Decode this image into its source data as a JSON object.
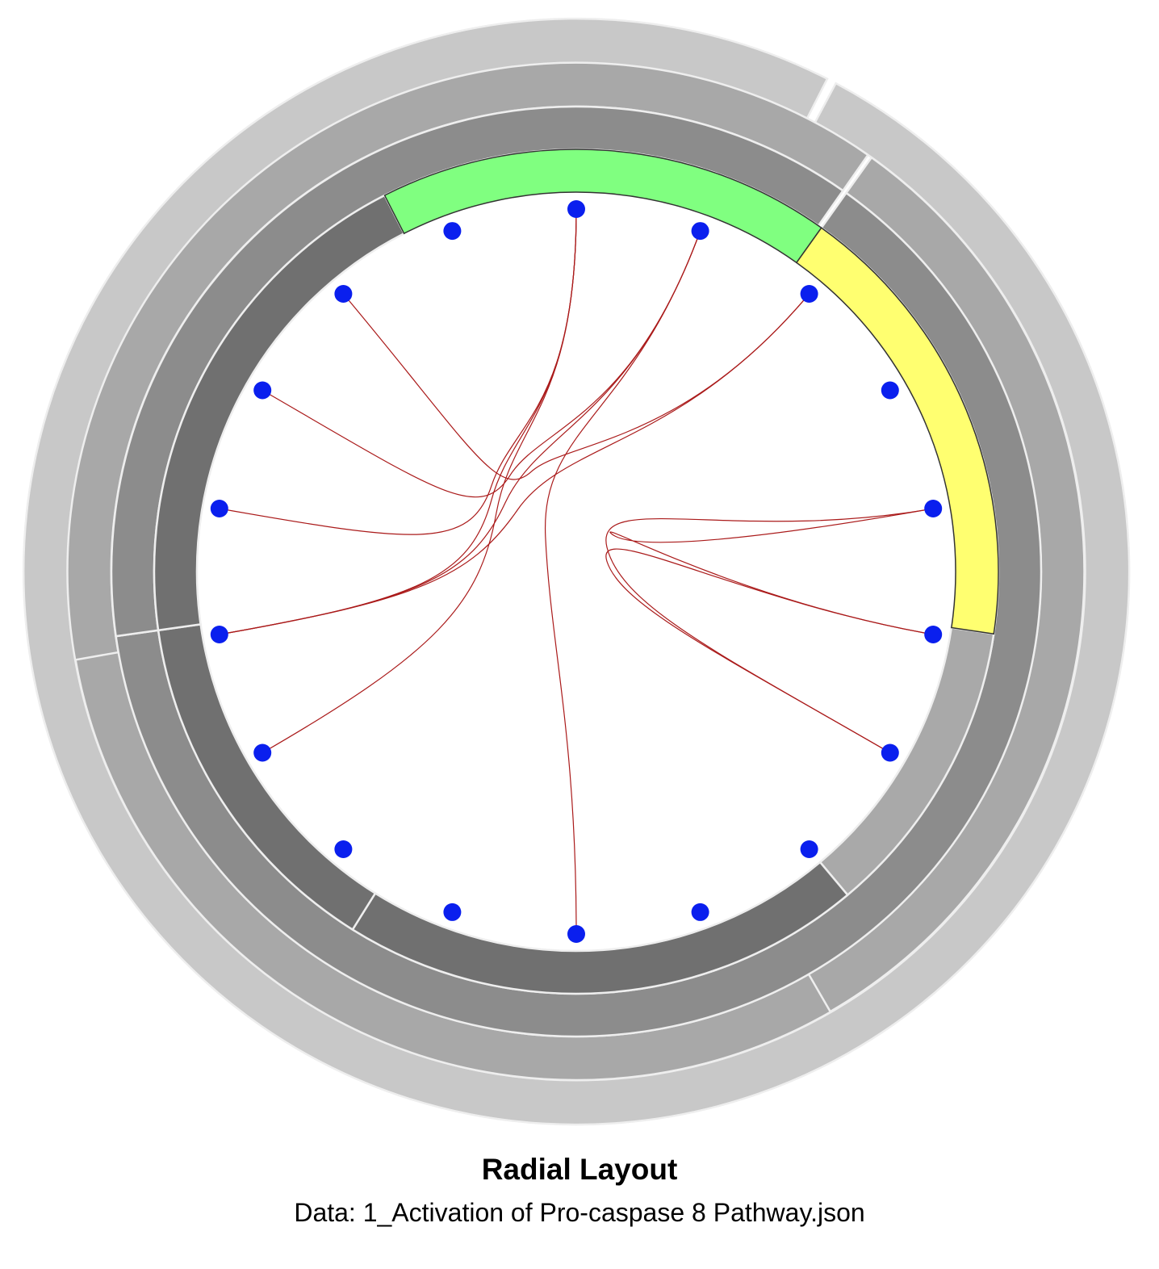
{
  "title": "Radial Layout",
  "subtitle": "Data: 1_Activation of Pro-caspase 8 Pathway.json",
  "colors": {
    "ring_level_1": "#c8c8c8",
    "ring_level_2": "#a8a8a8",
    "ring_level_3": "#8c8c8c",
    "ring_level_4": "#707070",
    "segment_lightgray": "#a9a9a9",
    "highlight_green": "#80ff80",
    "highlight_yellow": "#ffff70",
    "node": "#0a1fee",
    "edge": "#aa1a1a",
    "separator": "#eeeeee"
  },
  "diagram": {
    "node_count": 18,
    "highlight_segments": [
      "green",
      "yellow"
    ],
    "edges": [
      [
        1,
        9
      ],
      [
        0,
        13
      ],
      [
        0,
        14
      ],
      [
        1,
        13
      ],
      [
        1,
        15
      ],
      [
        2,
        13
      ],
      [
        0,
        12
      ],
      [
        5,
        4
      ],
      [
        5,
        6
      ],
      [
        4,
        6
      ],
      [
        2,
        16
      ]
    ]
  }
}
